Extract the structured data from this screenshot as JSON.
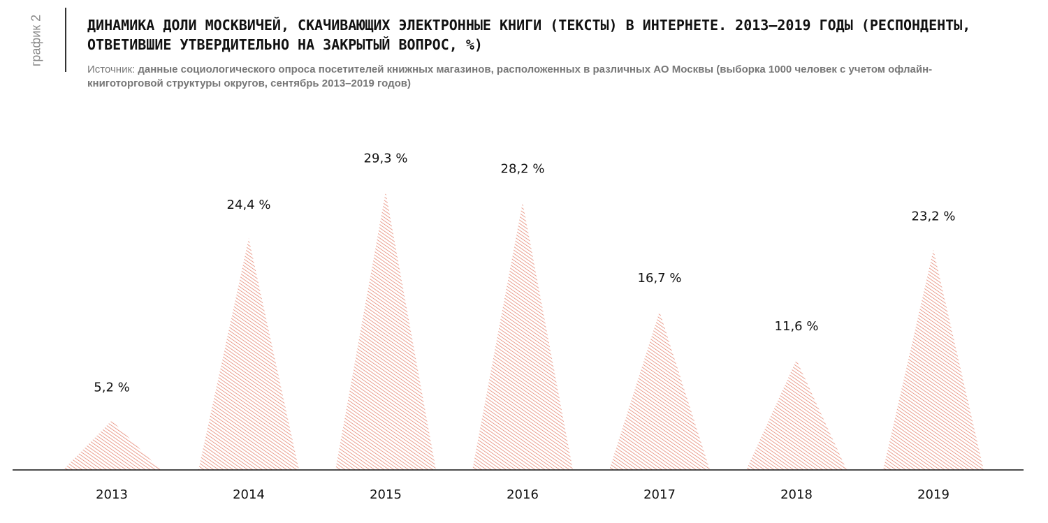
{
  "side_label": "график 2",
  "title": "ДИНАМИКА ДОЛИ МОСКВИЧЕЙ, СКАЧИВАЮЩИХ ЭЛЕКТРОННЫЕ КНИГИ (ТЕКСТЫ) В ИНТЕРНЕТЕ. 2013–2019 ГОДЫ (РЕСПОНДЕНТЫ, ОТВЕТИВШИЕ УТВЕРДИТЕЛЬНО НА ЗАКРЫТЫЙ ВОПРОС, %)",
  "source_prefix": "Источник: ",
  "source_text": "данные социологического опроса посетителей книжных магазинов, расположенных в различных АО Москвы (выборка 1000 человек с учетом офлайн-книготорговой структуры округов, сентябрь 2013–2019 годов)",
  "colors": {
    "hatch": "#e4826e",
    "baseline": "#111111"
  },
  "chart_data": {
    "type": "bar",
    "mark_shape": "triangle",
    "fill": "diagonal-hatch",
    "categories": [
      "2013",
      "2014",
      "2015",
      "2016",
      "2017",
      "2018",
      "2019"
    ],
    "values": [
      5.2,
      24.4,
      29.3,
      28.2,
      16.7,
      11.6,
      23.2
    ],
    "value_labels": [
      "5,2 %",
      "24,4 %",
      "29,3 %",
      "28,2 %",
      "16,7 %",
      "11,6 %",
      "23,2 %"
    ],
    "xlabel": "",
    "ylabel": "",
    "ylim": [
      0,
      30
    ],
    "grid": false,
    "legend": "none"
  }
}
